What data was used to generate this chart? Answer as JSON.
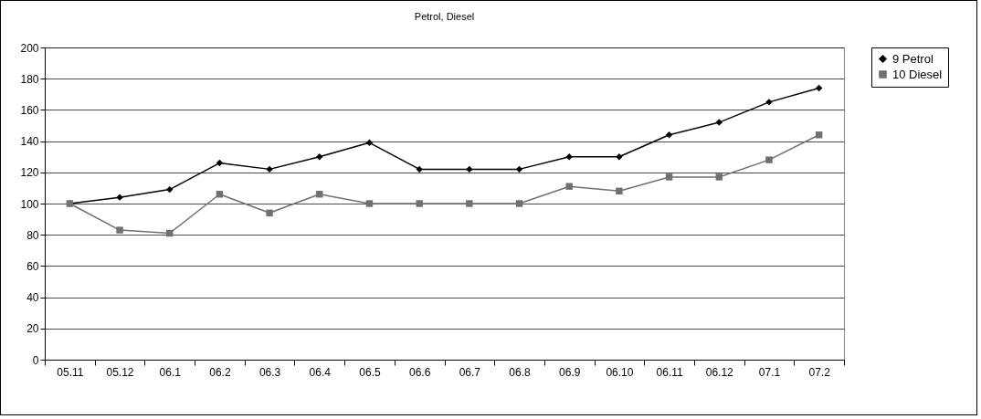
{
  "chart_data": {
    "type": "line",
    "title": "Petrol, Diesel",
    "categories": [
      "05.11",
      "05.12",
      "06.1",
      "06.2",
      "06.3",
      "06.4",
      "06.5",
      "06.6",
      "06.7",
      "06.8",
      "06.9",
      "06.10",
      "06.11",
      "06.12",
      "07.1",
      "07.2"
    ],
    "series": [
      {
        "name": "9 Petrol",
        "color": "#000000",
        "marker": "diamond",
        "values": [
          100,
          104,
          109,
          126,
          122,
          130,
          139,
          122,
          122,
          122,
          130,
          130,
          144,
          152,
          165,
          174
        ]
      },
      {
        "name": "10 Diesel",
        "color": "#707070",
        "marker": "square",
        "values": [
          100,
          83,
          81,
          106,
          94,
          106,
          100,
          100,
          100,
          100,
          111,
          108,
          117,
          117,
          128,
          144
        ]
      }
    ],
    "ylim": [
      0,
      200
    ],
    "yticks": [
      0,
      20,
      40,
      60,
      80,
      100,
      120,
      140,
      160,
      180,
      200
    ],
    "grid": "y",
    "legend": "right"
  }
}
